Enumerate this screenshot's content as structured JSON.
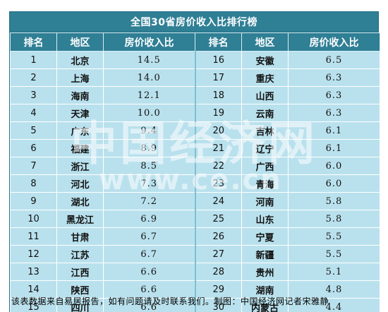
{
  "title": "全国30省房价收入比排行榜",
  "headers": {
    "rank": "排名",
    "region": "地区",
    "ratio": "房价收入比"
  },
  "rows": [
    {
      "left": {
        "rank": "1",
        "region": "北京",
        "ratio": "14.5"
      },
      "right": {
        "rank": "16",
        "region": "安徽",
        "ratio": "6.5"
      }
    },
    {
      "left": {
        "rank": "2",
        "region": "上海",
        "ratio": "14.0"
      },
      "right": {
        "rank": "17",
        "region": "重庆",
        "ratio": "6.3"
      }
    },
    {
      "left": {
        "rank": "3",
        "region": "海南",
        "ratio": "12.1"
      },
      "right": {
        "rank": "18",
        "region": "山西",
        "ratio": "6.3"
      }
    },
    {
      "left": {
        "rank": "4",
        "region": "天津",
        "ratio": "10.0"
      },
      "right": {
        "rank": "19",
        "region": "云南",
        "ratio": "6.3"
      }
    },
    {
      "left": {
        "rank": "5",
        "region": "广东",
        "ratio": "9.4"
      },
      "right": {
        "rank": "20",
        "region": "吉林",
        "ratio": "6.1"
      }
    },
    {
      "left": {
        "rank": "6",
        "region": "福建",
        "ratio": "8.9"
      },
      "right": {
        "rank": "21",
        "region": "辽宁",
        "ratio": "6.1"
      }
    },
    {
      "left": {
        "rank": "7",
        "region": "浙江",
        "ratio": "8.5"
      },
      "right": {
        "rank": "22",
        "region": "广西",
        "ratio": "6.0"
      }
    },
    {
      "left": {
        "rank": "8",
        "region": "河北",
        "ratio": "7.3"
      },
      "right": {
        "rank": "23",
        "region": "青海",
        "ratio": "6.0"
      }
    },
    {
      "left": {
        "rank": "9",
        "region": "湖北",
        "ratio": "7.2"
      },
      "right": {
        "rank": "24",
        "region": "河南",
        "ratio": "5.8"
      }
    },
    {
      "left": {
        "rank": "10",
        "region": "黑龙江",
        "ratio": "6.9"
      },
      "right": {
        "rank": "25",
        "region": "山东",
        "ratio": "5.8"
      }
    },
    {
      "left": {
        "rank": "11",
        "region": "甘肃",
        "ratio": "6.7"
      },
      "right": {
        "rank": "26",
        "region": "宁夏",
        "ratio": "5.5"
      }
    },
    {
      "left": {
        "rank": "12",
        "region": "江苏",
        "ratio": "6.7"
      },
      "right": {
        "rank": "27",
        "region": "新疆",
        "ratio": "5.5"
      }
    },
    {
      "left": {
        "rank": "13",
        "region": "江西",
        "ratio": "6.6"
      },
      "right": {
        "rank": "28",
        "region": "贵州",
        "ratio": "5.1"
      }
    },
    {
      "left": {
        "rank": "14",
        "region": "陕西",
        "ratio": "6.6"
      },
      "right": {
        "rank": "29",
        "region": "湖南",
        "ratio": "4.8"
      }
    },
    {
      "left": {
        "rank": "15",
        "region": "四川",
        "ratio": "6.6"
      },
      "right": {
        "rank": "30",
        "region": "内蒙古",
        "ratio": "4.4"
      }
    }
  ],
  "footer": "该表数据来自易居报告，如有问题请及时联系我们。制图：中国经济网记者宋雅静",
  "watermark": {
    "text_cn": "中国经济网",
    "url": "www.ce.cn"
  },
  "colors": {
    "header_bg": "#2f7f95",
    "cell_bg": "#b9e1ed"
  }
}
